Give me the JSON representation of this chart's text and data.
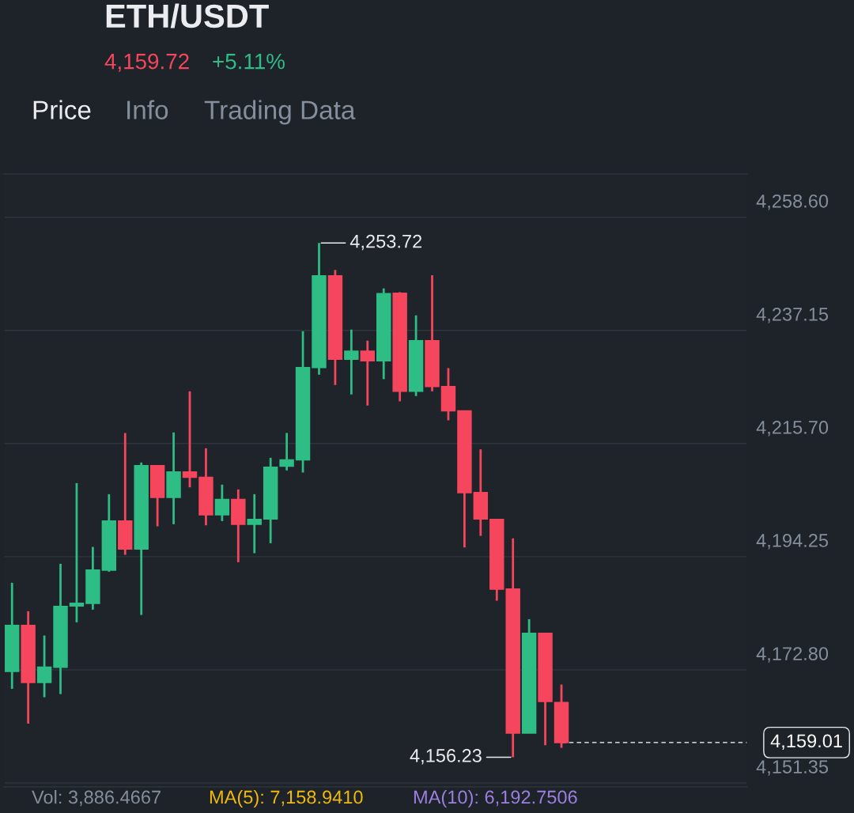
{
  "chart_data": {
    "type": "candlestick",
    "title": "ETH/USDT",
    "categories": [
      null,
      null,
      null,
      null,
      null,
      null,
      null,
      null,
      null,
      null,
      null,
      null,
      null,
      null,
      null,
      null,
      null,
      null,
      null,
      null,
      null,
      null,
      null,
      null,
      null,
      null,
      null,
      null,
      null,
      null,
      null,
      null,
      null,
      null,
      null,
      null,
      null,
      null,
      null,
      null,
      null,
      null,
      null,
      null,
      null,
      null
    ],
    "ohlc": [
      [
        4172.5,
        4189.3,
        4169.2,
        4181.2
      ],
      [
        4181.2,
        4183.9,
        4162.6,
        4170.4
      ],
      [
        4170.4,
        4179.3,
        4167.6,
        4173.3
      ],
      [
        4173.3,
        4192.9,
        4168.2,
        4184.8
      ],
      [
        4184.9,
        4208.2,
        4181.8,
        4185.4
      ],
      [
        4185.4,
        4196.1,
        4184.2,
        4191.7
      ],
      [
        4191.7,
        4206.1,
        4191.4,
        4201.0
      ],
      [
        4201.0,
        4217.7,
        4194.6,
        4195.7
      ],
      [
        4195.7,
        4212.1,
        4183.2,
        4211.5
      ],
      [
        4211.5,
        4211.6,
        4200.0,
        4205.5
      ],
      [
        4205.5,
        4217.8,
        4200.4,
        4210.3
      ],
      [
        4210.3,
        4225.6,
        4207.4,
        4209.3
      ],
      [
        4209.3,
        4214.8,
        4200.2,
        4202.2
      ],
      [
        4202.2,
        4207.9,
        4201.0,
        4205.1
      ],
      [
        4205.1,
        4207.0,
        4193.2,
        4200.4
      ],
      [
        4200.4,
        4206.1,
        4194.9,
        4201.3
      ],
      [
        4201.4,
        4213.0,
        4196.8,
        4211.2
      ],
      [
        4211.4,
        4217.7,
        4210.6,
        4212.6
      ],
      [
        4212.6,
        4237.0,
        4210.2,
        4230.1
      ],
      [
        4230.1,
        4253.72,
        4228.75,
        4247.5
      ],
      [
        4247.5,
        4248.6,
        4226.8,
        4231.7
      ],
      [
        4231.7,
        4237.3,
        4225.0,
        4233.2
      ],
      [
        4233.2,
        4235.2,
        4222.9,
        4231.4
      ],
      [
        4231.4,
        4245.1,
        4227.9,
        4244.1
      ],
      [
        4244.2,
        4244.4,
        4223.7,
        4225.6
      ],
      [
        4225.6,
        4240.0,
        4224.7,
        4235.2
      ],
      [
        4235.2,
        4247.6,
        4225.6,
        4226.5
      ],
      [
        4226.5,
        4230.0,
        4220.1,
        4221.9
      ],
      [
        4221.9,
        4221.9,
        4196.0,
        4206.4
      ],
      [
        4206.4,
        4214.6,
        4198.2,
        4201.4
      ],
      [
        4201.3,
        4201.3,
        4185.9,
        4188.1
      ],
      [
        4188.1,
        4197.7,
        4156.23,
        4160.8
      ],
      [
        4160.8,
        4182.4,
        4160.8,
        4179.7
      ],
      [
        4179.7,
        4179.7,
        4158.5,
        4166.8
      ],
      [
        4166.6,
        4170.0,
        4158.0,
        4159.01
      ],
      null,
      null,
      null,
      null,
      null,
      null,
      null,
      null,
      null,
      null,
      null
    ],
    "colors": [
      "#2ebd85",
      "#f6465d",
      "#2ebd85",
      "#2ebd85",
      "#2ebd85",
      "#2ebd85",
      "#2ebd85",
      "#f6465d",
      "#2ebd85",
      "#f6465d",
      "#2ebd85",
      "#f6465d",
      "#f6465d",
      "#2ebd85",
      "#f6465d",
      "#2ebd85",
      "#2ebd85",
      "#2ebd85",
      "#2ebd85",
      "#2ebd85",
      "#f6465d",
      "#2ebd85",
      "#f6465d",
      "#2ebd85",
      "#f6465d",
      "#2ebd85",
      "#f6465d",
      "#f6465d",
      "#f6465d",
      "#f6465d",
      "#f6465d",
      "#f6465d",
      "#2ebd85",
      "#f6465d",
      "#f6465d",
      null,
      null,
      null,
      null,
      null,
      null,
      null,
      null,
      null,
      null,
      null
    ],
    "ylim": [
      4150.6,
      4266.8
    ],
    "yticks": [
      {
        "value": 4151.35,
        "label": "4,151.35"
      },
      {
        "value": 4172.8,
        "label": "4,172.80"
      },
      {
        "value": 4194.25,
        "label": "4,194.25"
      },
      {
        "value": 4215.7,
        "label": "4,215.70"
      },
      {
        "value": 4237.15,
        "label": "4,237.15"
      },
      {
        "value": 4258.6,
        "label": "4,258.60"
      }
    ],
    "grid": "y",
    "ref_lines": [
      {
        "axis": "y",
        "value": 4159.01,
        "label": "4,159.01",
        "line_style": "dashed",
        "color": "#ffffff"
      }
    ],
    "annotations": [
      "4,159.72",
      "+5.11%",
      "Price",
      "Info",
      "Trading Data",
      "4,253.72",
      "4,156.23",
      "Vol: 3,886.4667",
      "MA(5): 7,158.9410",
      "MA(10): 6,192.7506"
    ]
  }
}
